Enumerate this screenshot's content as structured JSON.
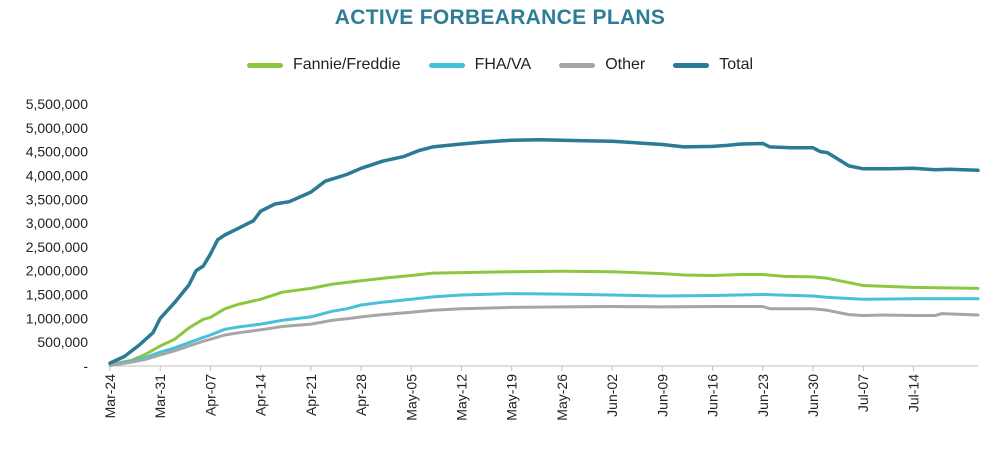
{
  "chart_data": {
    "type": "line",
    "title": "ACTIVE FORBEARANCE PLANS",
    "xlabel": "",
    "ylabel": "",
    "ylim": [
      0,
      5500000
    ],
    "y_ticks": [
      0,
      500000,
      1000000,
      1500000,
      2000000,
      2500000,
      3000000,
      3500000,
      4000000,
      4500000,
      5000000,
      5500000
    ],
    "y_tick_labels": [
      "-",
      "500,000",
      "1,000,000",
      "1,500,000",
      "2,000,000",
      "2,500,000",
      "3,000,000",
      "3,500,000",
      "4,000,000",
      "4,500,000",
      "5,000,000",
      "5,500,000"
    ],
    "x_day_range": [
      0,
      121
    ],
    "x_ticks": [
      {
        "label": "Mar-24",
        "day": 0
      },
      {
        "label": "Mar-31",
        "day": 7
      },
      {
        "label": "Apr-07",
        "day": 14
      },
      {
        "label": "Apr-14",
        "day": 21
      },
      {
        "label": "Apr-21",
        "day": 28
      },
      {
        "label": "Apr-28",
        "day": 35
      },
      {
        "label": "May-05",
        "day": 42
      },
      {
        "label": "May-12",
        "day": 49
      },
      {
        "label": "May-19",
        "day": 56
      },
      {
        "label": "May-26",
        "day": 63
      },
      {
        "label": "Jun-02",
        "day": 70
      },
      {
        "label": "Jun-09",
        "day": 77
      },
      {
        "label": "Jun-16",
        "day": 84
      },
      {
        "label": "Jun-23",
        "day": 91
      },
      {
        "label": "Jun-30",
        "day": 98
      },
      {
        "label": "Jul-07",
        "day": 105
      },
      {
        "label": "Jul-14",
        "day": 112
      }
    ],
    "legend_position": "top-center",
    "series": [
      {
        "name": "Fannie/Freddie",
        "color": "#8dc63f",
        "points": [
          [
            0,
            30000
          ],
          [
            3,
            120000
          ],
          [
            5,
            250000
          ],
          [
            7,
            420000
          ],
          [
            9,
            560000
          ],
          [
            11,
            800000
          ],
          [
            13,
            980000
          ],
          [
            14,
            1020000
          ],
          [
            16,
            1200000
          ],
          [
            18,
            1300000
          ],
          [
            21,
            1400000
          ],
          [
            24,
            1550000
          ],
          [
            28,
            1630000
          ],
          [
            31,
            1720000
          ],
          [
            35,
            1790000
          ],
          [
            38,
            1840000
          ],
          [
            42,
            1900000
          ],
          [
            45,
            1950000
          ],
          [
            49,
            1960000
          ],
          [
            56,
            1980000
          ],
          [
            63,
            1990000
          ],
          [
            70,
            1980000
          ],
          [
            77,
            1940000
          ],
          [
            80,
            1910000
          ],
          [
            84,
            1900000
          ],
          [
            88,
            1920000
          ],
          [
            91,
            1920000
          ],
          [
            94,
            1880000
          ],
          [
            98,
            1870000
          ],
          [
            100,
            1840000
          ],
          [
            105,
            1690000
          ],
          [
            112,
            1650000
          ],
          [
            121,
            1630000
          ]
        ]
      },
      {
        "name": "FHA/VA",
        "color": "#45c1d8",
        "points": [
          [
            0,
            20000
          ],
          [
            3,
            100000
          ],
          [
            5,
            180000
          ],
          [
            7,
            290000
          ],
          [
            9,
            380000
          ],
          [
            11,
            490000
          ],
          [
            13,
            600000
          ],
          [
            14,
            650000
          ],
          [
            16,
            770000
          ],
          [
            18,
            820000
          ],
          [
            21,
            880000
          ],
          [
            24,
            960000
          ],
          [
            28,
            1030000
          ],
          [
            31,
            1150000
          ],
          [
            33,
            1200000
          ],
          [
            35,
            1280000
          ],
          [
            38,
            1340000
          ],
          [
            42,
            1400000
          ],
          [
            45,
            1450000
          ],
          [
            49,
            1490000
          ],
          [
            56,
            1520000
          ],
          [
            63,
            1510000
          ],
          [
            70,
            1490000
          ],
          [
            77,
            1470000
          ],
          [
            84,
            1480000
          ],
          [
            91,
            1500000
          ],
          [
            98,
            1470000
          ],
          [
            100,
            1440000
          ],
          [
            105,
            1400000
          ],
          [
            112,
            1410000
          ],
          [
            121,
            1410000
          ]
        ]
      },
      {
        "name": "Other",
        "color": "#a6a6a6",
        "points": [
          [
            0,
            10000
          ],
          [
            3,
            80000
          ],
          [
            5,
            140000
          ],
          [
            7,
            230000
          ],
          [
            9,
            320000
          ],
          [
            11,
            420000
          ],
          [
            13,
            520000
          ],
          [
            14,
            560000
          ],
          [
            16,
            650000
          ],
          [
            18,
            700000
          ],
          [
            21,
            760000
          ],
          [
            24,
            830000
          ],
          [
            28,
            880000
          ],
          [
            31,
            960000
          ],
          [
            33,
            990000
          ],
          [
            35,
            1030000
          ],
          [
            38,
            1080000
          ],
          [
            42,
            1130000
          ],
          [
            45,
            1170000
          ],
          [
            49,
            1200000
          ],
          [
            56,
            1230000
          ],
          [
            63,
            1240000
          ],
          [
            70,
            1250000
          ],
          [
            77,
            1240000
          ],
          [
            84,
            1250000
          ],
          [
            91,
            1250000
          ],
          [
            92,
            1200000
          ],
          [
            98,
            1200000
          ],
          [
            100,
            1170000
          ],
          [
            103,
            1080000
          ],
          [
            105,
            1060000
          ],
          [
            108,
            1070000
          ],
          [
            112,
            1060000
          ],
          [
            115,
            1060000
          ],
          [
            116,
            1100000
          ],
          [
            121,
            1070000
          ]
        ]
      },
      {
        "name": "Total",
        "color": "#2a7b93",
        "points": [
          [
            0,
            60000
          ],
          [
            2,
            200000
          ],
          [
            4,
            430000
          ],
          [
            6,
            700000
          ],
          [
            7,
            1000000
          ],
          [
            9,
            1330000
          ],
          [
            11,
            1700000
          ],
          [
            12,
            2000000
          ],
          [
            13,
            2100000
          ],
          [
            14,
            2350000
          ],
          [
            15,
            2650000
          ],
          [
            16,
            2750000
          ],
          [
            18,
            2900000
          ],
          [
            20,
            3050000
          ],
          [
            21,
            3250000
          ],
          [
            23,
            3400000
          ],
          [
            25,
            3450000
          ],
          [
            28,
            3650000
          ],
          [
            30,
            3880000
          ],
          [
            33,
            4020000
          ],
          [
            35,
            4150000
          ],
          [
            38,
            4300000
          ],
          [
            41,
            4400000
          ],
          [
            43,
            4520000
          ],
          [
            45,
            4600000
          ],
          [
            49,
            4660000
          ],
          [
            52,
            4700000
          ],
          [
            56,
            4740000
          ],
          [
            60,
            4750000
          ],
          [
            63,
            4740000
          ],
          [
            66,
            4730000
          ],
          [
            70,
            4720000
          ],
          [
            74,
            4680000
          ],
          [
            77,
            4650000
          ],
          [
            80,
            4600000
          ],
          [
            84,
            4610000
          ],
          [
            86,
            4630000
          ],
          [
            88,
            4660000
          ],
          [
            91,
            4670000
          ],
          [
            92,
            4600000
          ],
          [
            95,
            4580000
          ],
          [
            98,
            4580000
          ],
          [
            99,
            4500000
          ],
          [
            100,
            4480000
          ],
          [
            103,
            4200000
          ],
          [
            105,
            4140000
          ],
          [
            108,
            4140000
          ],
          [
            112,
            4150000
          ],
          [
            115,
            4120000
          ],
          [
            117,
            4130000
          ],
          [
            121,
            4110000
          ]
        ]
      }
    ]
  }
}
